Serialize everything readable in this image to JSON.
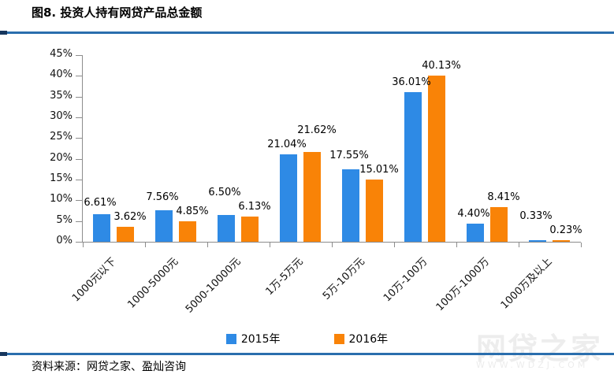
{
  "header": {
    "title": "图8. 投资人持有网贷产品总金额"
  },
  "chart_data": {
    "type": "bar",
    "title": "图8. 投资人持有网贷产品总金额",
    "categories": [
      "1000元以下",
      "1000-5000元",
      "5000-10000元",
      "1万-5万元",
      "5万-10万元",
      "10万-100万",
      "100万-1000万",
      "1000万及以上"
    ],
    "series": [
      {
        "name": "2015年",
        "color": "#2E8AE5",
        "values": [
          6.61,
          7.56,
          6.5,
          21.04,
          17.55,
          36.01,
          4.4,
          0.33
        ]
      },
      {
        "name": "2016年",
        "color": "#F98307",
        "values": [
          3.62,
          4.85,
          6.13,
          21.62,
          15.01,
          40.13,
          8.41,
          0.23
        ]
      }
    ],
    "xlabel": "",
    "ylabel": "",
    "ylim": [
      0,
      45
    ],
    "ytick_step": 5,
    "ytick_format": "percent",
    "data_labels": true,
    "label_format": "0.00%",
    "grid": false,
    "legend_position": "bottom"
  },
  "footer": {
    "source": "资料来源：网贷之家、盈灿咨询"
  },
  "watermark": {
    "text": "网贷之家",
    "subtext": "WWW.WDZJ.COM"
  },
  "colors": {
    "rule_blue": "#2A6EAD",
    "rule_dark": "#16365D",
    "axis_gray": "#8C8C8C",
    "series_2015": "#2E8AE5",
    "series_2016": "#F98307"
  }
}
